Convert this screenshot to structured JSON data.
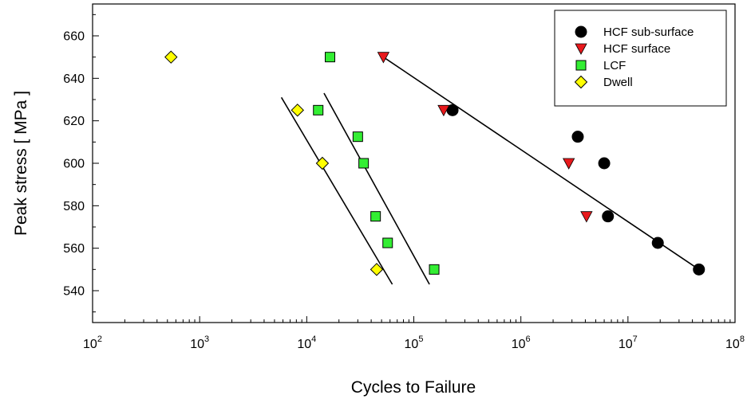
{
  "chart_data": {
    "type": "scatter",
    "xlabel": "Cycles to Failure",
    "ylabel": "Peak stress  [ MPa ]",
    "x_scale": "log",
    "xlim": [
      100,
      100000000
    ],
    "ylim": [
      525,
      675
    ],
    "x_ticks": [
      {
        "base": "10",
        "exp": "2",
        "value": 100
      },
      {
        "base": "10",
        "exp": "3",
        "value": 1000
      },
      {
        "base": "10",
        "exp": "4",
        "value": 10000
      },
      {
        "base": "10",
        "exp": "5",
        "value": 100000
      },
      {
        "base": "10",
        "exp": "6",
        "value": 1000000
      },
      {
        "base": "10",
        "exp": "7",
        "value": 10000000
      },
      {
        "base": "10",
        "exp": "8",
        "value": 100000000
      }
    ],
    "y_ticks": [
      "540",
      "560",
      "580",
      "600",
      "620",
      "640",
      "660"
    ],
    "grid": false,
    "legend_position": "top-right",
    "series": [
      {
        "name": "HCF sub-surface",
        "marker": "circle",
        "color": "#000000",
        "points": [
          [
            230000,
            625
          ],
          [
            3400000,
            612.5
          ],
          [
            6000000,
            600
          ],
          [
            6500000,
            575
          ],
          [
            19000000,
            562.5
          ],
          [
            46000000,
            550
          ]
        ]
      },
      {
        "name": "HCF surface",
        "marker": "triangle-down",
        "color": "#e8191c",
        "points": [
          [
            52000,
            650
          ],
          [
            190000,
            625
          ],
          [
            2800000,
            600
          ],
          [
            4100000,
            575
          ]
        ]
      },
      {
        "name": "LCF",
        "marker": "square",
        "color": "#33ee33",
        "points": [
          [
            16500,
            650
          ],
          [
            12800,
            625
          ],
          [
            30000,
            612.5
          ],
          [
            34000,
            600
          ],
          [
            44000,
            575
          ],
          [
            57000,
            562.5
          ],
          [
            155000,
            550
          ]
        ]
      },
      {
        "name": "Dwell",
        "marker": "diamond",
        "color": "#ffff00",
        "points": [
          [
            540,
            650
          ],
          [
            8200,
            625
          ],
          [
            14000,
            600
          ],
          [
            45000,
            550
          ]
        ]
      }
    ],
    "fit_lines": [
      {
        "from": [
          5800,
          631
        ],
        "to": [
          63000,
          543
        ]
      },
      {
        "from": [
          14500,
          633
        ],
        "to": [
          140000,
          543
        ]
      },
      {
        "from": [
          52000,
          650
        ],
        "to": [
          46000000,
          550
        ]
      }
    ]
  }
}
